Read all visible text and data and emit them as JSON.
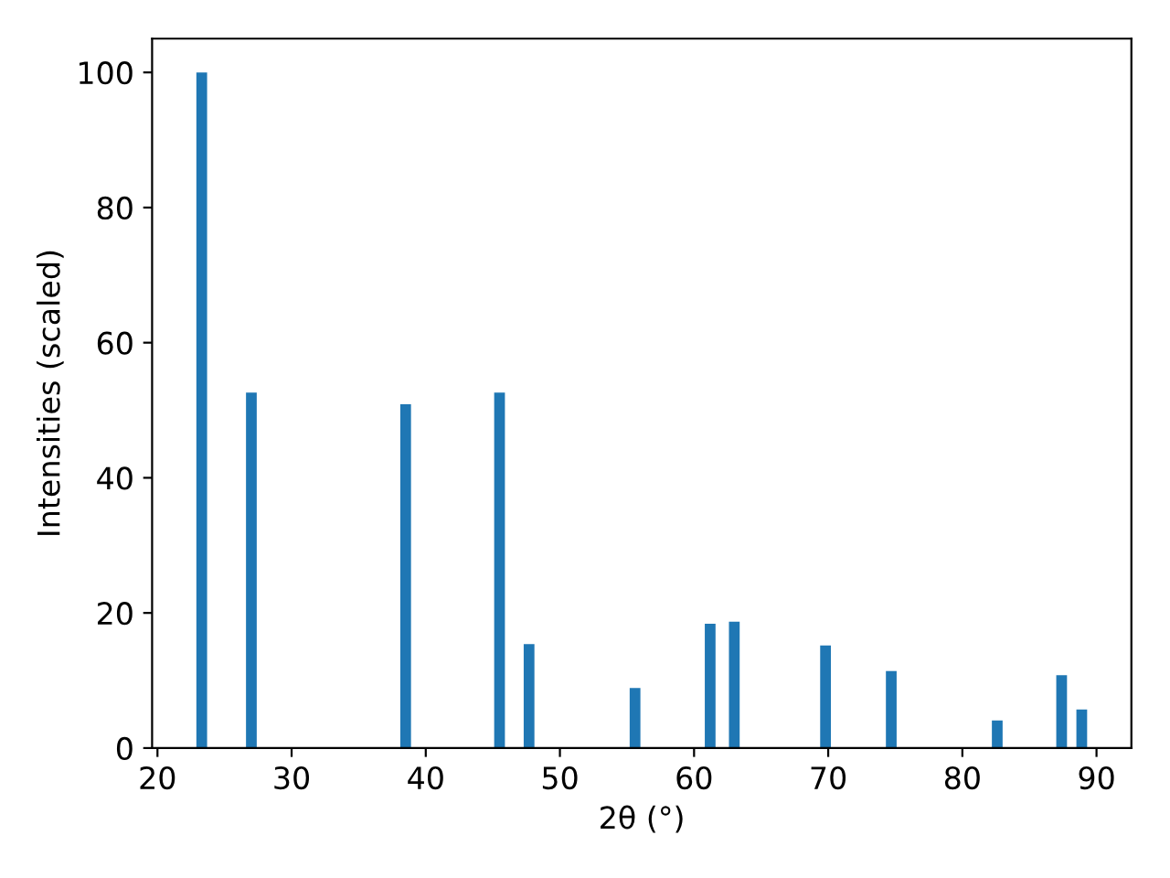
{
  "chart_data": {
    "type": "bar",
    "xlabel": "2θ (°)",
    "ylabel": "Intensities (scaled)",
    "x": [
      23.3,
      27.0,
      38.5,
      45.5,
      47.7,
      55.6,
      61.2,
      63.0,
      69.8,
      74.7,
      82.6,
      87.4,
      88.9
    ],
    "values": [
      100,
      52.6,
      50.9,
      52.6,
      15.4,
      8.9,
      18.4,
      18.7,
      15.2,
      11.4,
      4.1,
      10.8,
      5.7
    ],
    "color": "#1f77b4",
    "xlim": [
      19.6,
      92.6
    ],
    "xticks": [
      20,
      30,
      40,
      50,
      60,
      70,
      80,
      90
    ],
    "ylim": [
      0,
      105
    ],
    "yticks": [
      0,
      20,
      40,
      60,
      80,
      100
    ],
    "grid": false,
    "legend": false
  }
}
